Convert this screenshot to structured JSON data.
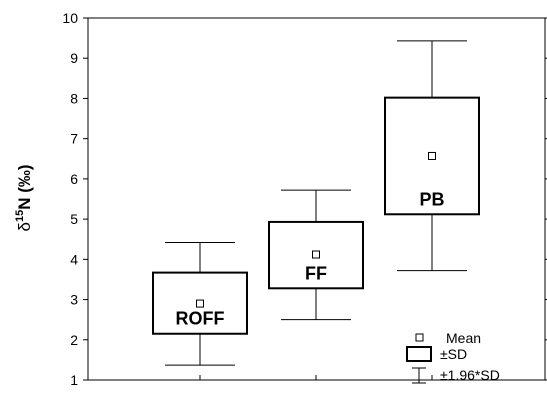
{
  "chart_data": {
    "type": "box",
    "ylabel_prefix": "δ",
    "ylabel_sup": "15",
    "ylabel_rest": "N (‰)",
    "ylim": [
      1,
      10
    ],
    "yticks": [
      1,
      2,
      3,
      4,
      5,
      6,
      7,
      8,
      9,
      10
    ],
    "categories": [
      "ROFF",
      "FF",
      "PB"
    ],
    "series": [
      {
        "mean": 2.9,
        "sd_low": 2.15,
        "sd_high": 3.67,
        "ci_low": 1.37,
        "ci_high": 4.42
      },
      {
        "mean": 4.12,
        "sd_low": 3.28,
        "sd_high": 4.93,
        "ci_low": 2.5,
        "ci_high": 5.72
      },
      {
        "mean": 6.57,
        "sd_low": 5.12,
        "sd_high": 8.02,
        "ci_low": 3.72,
        "ci_high": 9.43
      }
    ],
    "legend": {
      "mean": "Mean",
      "sd": "±SD",
      "ci": "±1.96*SD"
    },
    "legend_position": "bottom-right",
    "grid": false
  }
}
